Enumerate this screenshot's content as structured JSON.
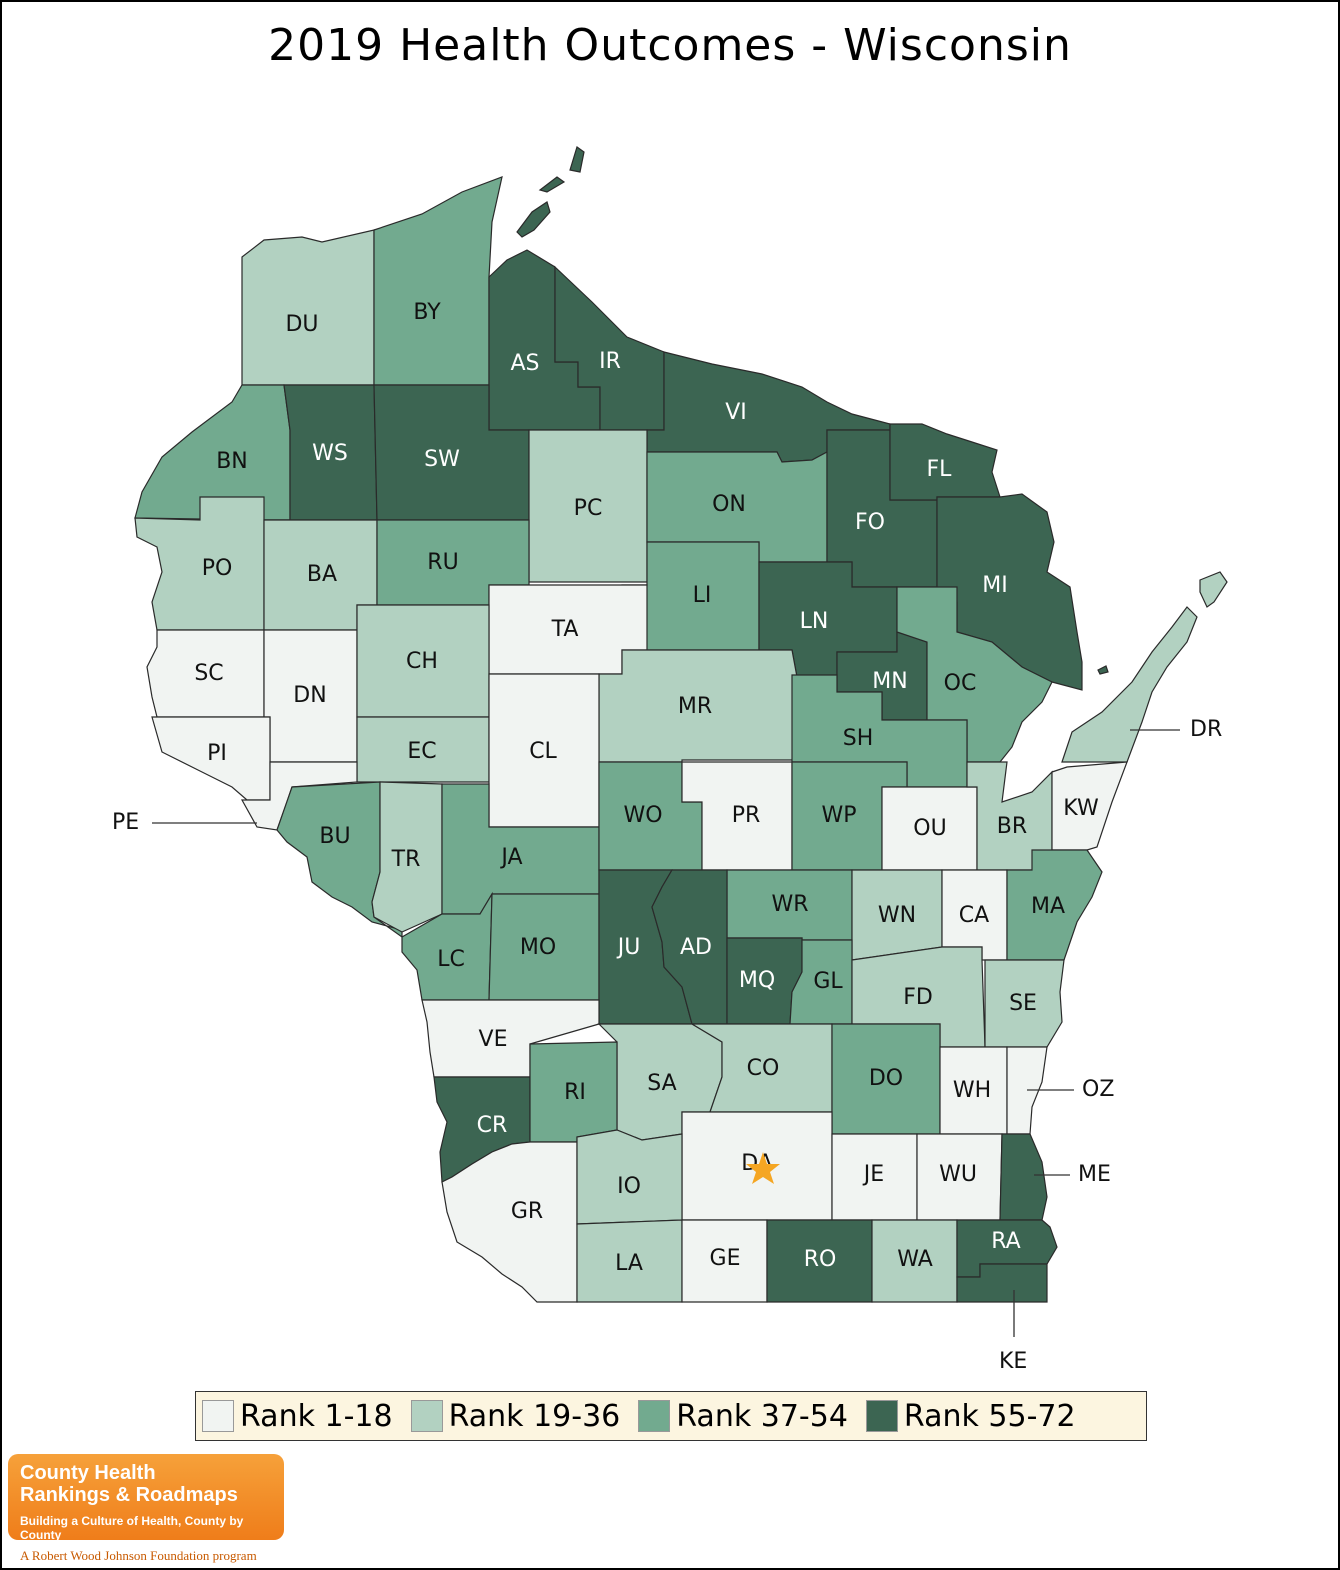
{
  "title": "2019 Health Outcomes - Wisconsin",
  "colors": {
    "rank_1_18": "#f1f4f2",
    "rank_19_36": "#b2d1c1",
    "rank_37_54": "#72aa8f",
    "rank_55_72": "#3c6552",
    "star": "#f5a623"
  },
  "legend": [
    {
      "label": "Rank 1-18",
      "class": 1
    },
    {
      "label": "Rank 19-36",
      "class": 2
    },
    {
      "label": "Rank 37-54",
      "class": 3
    },
    {
      "label": "Rank 55-72",
      "class": 4
    }
  ],
  "counties": [
    {
      "code": "DU",
      "class": 2
    },
    {
      "code": "BY",
      "class": 3
    },
    {
      "code": "AS",
      "class": 4
    },
    {
      "code": "IR",
      "class": 4
    },
    {
      "code": "VI",
      "class": 4
    },
    {
      "code": "BN",
      "class": 3
    },
    {
      "code": "WS",
      "class": 4
    },
    {
      "code": "SW",
      "class": 4
    },
    {
      "code": "PC",
      "class": 2
    },
    {
      "code": "ON",
      "class": 3
    },
    {
      "code": "FO",
      "class": 4
    },
    {
      "code": "FL",
      "class": 4
    },
    {
      "code": "MI",
      "class": 4
    },
    {
      "code": "PO",
      "class": 2
    },
    {
      "code": "BA",
      "class": 2
    },
    {
      "code": "RU",
      "class": 3
    },
    {
      "code": "LI",
      "class": 3
    },
    {
      "code": "LN",
      "class": 4
    },
    {
      "code": "TA",
      "class": 1
    },
    {
      "code": "SC",
      "class": 1
    },
    {
      "code": "DN",
      "class": 1
    },
    {
      "code": "CH",
      "class": 2
    },
    {
      "code": "MR",
      "class": 2
    },
    {
      "code": "MN",
      "class": 4
    },
    {
      "code": "OC",
      "class": 3
    },
    {
      "code": "PI",
      "class": 1
    },
    {
      "code": "EC",
      "class": 2
    },
    {
      "code": "CL",
      "class": 1
    },
    {
      "code": "SH",
      "class": 3
    },
    {
      "code": "DR",
      "class": 2
    },
    {
      "code": "PE",
      "class": 1
    },
    {
      "code": "BU",
      "class": 3
    },
    {
      "code": "TR",
      "class": 2
    },
    {
      "code": "JA",
      "class": 3
    },
    {
      "code": "WO",
      "class": 3
    },
    {
      "code": "PR",
      "class": 1
    },
    {
      "code": "WP",
      "class": 3
    },
    {
      "code": "OU",
      "class": 1
    },
    {
      "code": "BR",
      "class": 2
    },
    {
      "code": "KW",
      "class": 1
    },
    {
      "code": "WR",
      "class": 3
    },
    {
      "code": "WN",
      "class": 2
    },
    {
      "code": "CA",
      "class": 1
    },
    {
      "code": "MA",
      "class": 3
    },
    {
      "code": "LC",
      "class": 3
    },
    {
      "code": "MO",
      "class": 3
    },
    {
      "code": "JU",
      "class": 4
    },
    {
      "code": "AD",
      "class": 4
    },
    {
      "code": "MQ",
      "class": 4
    },
    {
      "code": "GL",
      "class": 3
    },
    {
      "code": "FD",
      "class": 2
    },
    {
      "code": "SE",
      "class": 2
    },
    {
      "code": "VE",
      "class": 1
    },
    {
      "code": "SA",
      "class": 2
    },
    {
      "code": "CO",
      "class": 2
    },
    {
      "code": "DO",
      "class": 3
    },
    {
      "code": "WH",
      "class": 1
    },
    {
      "code": "OZ",
      "class": 1
    },
    {
      "code": "CR",
      "class": 4
    },
    {
      "code": "RI",
      "class": 3
    },
    {
      "code": "DA",
      "class": 1
    },
    {
      "code": "JE",
      "class": 1
    },
    {
      "code": "WU",
      "class": 1
    },
    {
      "code": "ME",
      "class": 4
    },
    {
      "code": "GR",
      "class": 1
    },
    {
      "code": "IO",
      "class": 2
    },
    {
      "code": "LA",
      "class": 2
    },
    {
      "code": "GE",
      "class": 1
    },
    {
      "code": "RO",
      "class": 4
    },
    {
      "code": "WA",
      "class": 2
    },
    {
      "code": "RA",
      "class": 4
    },
    {
      "code": "KE",
      "class": 4
    }
  ],
  "logo": {
    "line1": "County Health",
    "line2": "Rankings & Roadmaps",
    "tagline": "Building a Culture of Health, County by County"
  },
  "foundation": "A Robert Wood Johnson Foundation program"
}
